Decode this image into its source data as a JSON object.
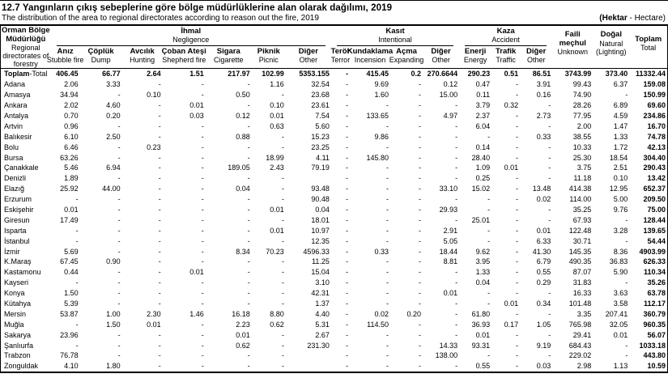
{
  "page": {
    "title": "12.7 Yangınların çıkış sebeplerine göre bölge müdürlüklerine alan olarak dağılımı, 2019",
    "subtitle": "The distribution of the area to regional directorates according to reason out the fire, 2019",
    "unit_tr": "(Hektar",
    "unit_en": " - Hectare)"
  },
  "table": {
    "row_header": {
      "tr": "Orman Bölge Müdürlüğü",
      "en": "Regional directorates of forestry"
    },
    "groups": [
      {
        "tr": "İhmal",
        "en": "Negligence"
      },
      {
        "tr": "Kasıt",
        "en": "Intentional"
      },
      {
        "tr": "Kaza",
        "en": "Accident"
      }
    ],
    "columns": [
      {
        "tr": "Anız",
        "en": "Stubble fire"
      },
      {
        "tr": "Çöplük",
        "en": "Dump"
      },
      {
        "tr": "Avcılık",
        "en": "Hunting"
      },
      {
        "tr": "Çoban Ateşi",
        "en": "Shepherd fire"
      },
      {
        "tr": "Sigara",
        "en": "Cigarette"
      },
      {
        "tr": "Piknik",
        "en": "Picnic"
      },
      {
        "tr": "Diğer",
        "en": "Other"
      },
      {
        "tr": "Terör",
        "en": "Terror"
      },
      {
        "tr": "Kundaklama",
        "en": "Incension"
      },
      {
        "tr": "Açma",
        "en": "Expanding"
      },
      {
        "tr": "Diğer",
        "en": "Other"
      },
      {
        "tr": "Enerji",
        "en": "Energy"
      },
      {
        "tr": "Trafik",
        "en": "Traffic"
      },
      {
        "tr": "Diğer",
        "en": "Other"
      }
    ],
    "singles": [
      {
        "tr": "Faili meçhul",
        "en": "Unknown"
      },
      {
        "tr": "Doğal",
        "en": "Natural (Lighting)"
      },
      {
        "tr": "Toplam",
        "en": "Total"
      }
    ],
    "rows": [
      {
        "label": "Toplam",
        "label2": "-Total",
        "total": true,
        "values": [
          "406.45",
          "66.77",
          "2.64",
          "1.51",
          "217.97",
          "102.99",
          "5353.155",
          "-",
          "415.45",
          "0.2",
          "270.6644",
          "290.23",
          "0.51",
          "86.51",
          "3743.99",
          "373.40",
          "11332.44"
        ]
      },
      {
        "label": "Adana",
        "values": [
          "2.06",
          "3.33",
          "-",
          "-",
          "-",
          "1.16",
          "32.54",
          "-",
          "9.69",
          "-",
          "0.12",
          "0.47",
          "-",
          "3.91",
          "99.43",
          "6.37",
          "159.08"
        ]
      },
      {
        "label": "Amasya",
        "values": [
          "34.94",
          "-",
          "0.10",
          "-",
          "0.50",
          "-",
          "23.68",
          "-",
          "1.60",
          "-",
          "15.00",
          "0.11",
          "-",
          "0.16",
          "74.90",
          "-",
          "150.99"
        ]
      },
      {
        "label": "Ankara",
        "values": [
          "2.02",
          "4.60",
          "-",
          "0.01",
          "-",
          "0.10",
          "23.61",
          "-",
          "-",
          "-",
          "-",
          "3.79",
          "0.32",
          "-",
          "28.26",
          "6.89",
          "69.60"
        ]
      },
      {
        "label": "Antalya",
        "values": [
          "0.70",
          "0.20",
          "-",
          "0.03",
          "0.12",
          "0.01",
          "7.54",
          "-",
          "133.65",
          "-",
          "4.97",
          "2.37",
          "-",
          "2.73",
          "77.95",
          "4.59",
          "234.86"
        ]
      },
      {
        "label": "Artvin",
        "values": [
          "0.96",
          "-",
          "-",
          "-",
          "-",
          "0.63",
          "5.60",
          "-",
          "-",
          "-",
          "-",
          "6.04",
          "-",
          "-",
          "2.00",
          "1.47",
          "16.70"
        ]
      },
      {
        "label": "Balıkesir",
        "values": [
          "6.10",
          "2.50",
          "-",
          "-",
          "0.88",
          "-",
          "15.23",
          "-",
          "9.86",
          "-",
          "-",
          "-",
          "-",
          "0.33",
          "38.55",
          "1.33",
          "74.78"
        ]
      },
      {
        "label": "Bolu",
        "values": [
          "6.46",
          "-",
          "0.23",
          "-",
          "-",
          "-",
          "23.25",
          "-",
          "-",
          "-",
          "-",
          "0.14",
          "-",
          "-",
          "10.33",
          "1.72",
          "42.13"
        ]
      },
      {
        "label": "Bursa",
        "values": [
          "63.26",
          "-",
          "-",
          "-",
          "-",
          "18.99",
          "4.11",
          "-",
          "145.80",
          "-",
          "-",
          "28.40",
          "-",
          "-",
          "25.30",
          "18.54",
          "304.40"
        ]
      },
      {
        "label": "Çanakkale",
        "values": [
          "5.46",
          "6.94",
          "-",
          "-",
          "189.05",
          "2.43",
          "79.19",
          "-",
          "-",
          "-",
          "-",
          "1.09",
          "0.01",
          "-",
          "3.75",
          "2.51",
          "290.43"
        ]
      },
      {
        "label": "Denizli",
        "values": [
          "1.89",
          "-",
          "-",
          "-",
          "-",
          "-",
          "",
          "-",
          "-",
          "-",
          "-",
          "0.25",
          "-",
          "-",
          "11.18",
          "0.10",
          "13.42"
        ]
      },
      {
        "label": "Elazığ",
        "values": [
          "25.92",
          "44.00",
          "-",
          "-",
          "0.04",
          "-",
          "93.48",
          "-",
          "-",
          "-",
          "33.10",
          "15.02",
          "-",
          "13.48",
          "414.38",
          "12.95",
          "652.37"
        ]
      },
      {
        "label": "Erzurum",
        "values": [
          "-",
          "-",
          "-",
          "-",
          "-",
          "-",
          "90.48",
          "-",
          "-",
          "-",
          "-",
          "-",
          "-",
          "0.02",
          "114.00",
          "5.00",
          "209.50"
        ]
      },
      {
        "label": "Eskişehir",
        "values": [
          "0.01",
          "-",
          "-",
          "-",
          "-",
          "0.01",
          "0.04",
          "-",
          "-",
          "-",
          "29.93",
          "-",
          "-",
          "-",
          "35.25",
          "9.76",
          "75.00"
        ]
      },
      {
        "label": "Giresun",
        "values": [
          "17.49",
          "-",
          "-",
          "-",
          "-",
          "-",
          "18.01",
          "-",
          "-",
          "-",
          "-",
          "25.01",
          "-",
          "-",
          "67.93",
          "-",
          "128.44"
        ]
      },
      {
        "label": "Isparta",
        "values": [
          "-",
          "-",
          "-",
          "-",
          "-",
          "0.01",
          "10.97",
          "-",
          "-",
          "-",
          "2.91",
          "-",
          "-",
          "0.01",
          "122.48",
          "3.28",
          "139.65"
        ]
      },
      {
        "label": "İstanbul",
        "values": [
          "-",
          "-",
          "-",
          "-",
          "-",
          "-",
          "12.35",
          "-",
          "-",
          "-",
          "5.05",
          "-",
          "-",
          "6.33",
          "30.71",
          "-",
          "54.44"
        ]
      },
      {
        "label": "İzmir",
        "values": [
          "5.69",
          "-",
          "-",
          "-",
          "8.34",
          "70.23",
          "4596.33",
          "-",
          "0.33",
          "-",
          "18.44",
          "9.62",
          "-",
          "41.30",
          "145.35",
          "8.36",
          "4903.99"
        ]
      },
      {
        "label": "K.Maraş",
        "values": [
          "67.45",
          "0.90",
          "-",
          "-",
          "-",
          "-",
          "11.25",
          "-",
          "-",
          "-",
          "8.81",
          "3.95",
          "-",
          "6.79",
          "490.35",
          "36.83",
          "626.33"
        ]
      },
      {
        "label": "Kastamonu",
        "values": [
          "0.44",
          "-",
          "-",
          "0.01",
          "-",
          "-",
          "15.04",
          "-",
          "-",
          "-",
          "-",
          "1.33",
          "-",
          "0.55",
          "87.07",
          "5.90",
          "110.34"
        ]
      },
      {
        "label": "Kayseri",
        "values": [
          "-",
          "-",
          "-",
          "-",
          "-",
          "-",
          "3.10",
          "-",
          "-",
          "-",
          "-",
          "0.04",
          "-",
          "0.29",
          "31.83",
          "-",
          "35.26"
        ]
      },
      {
        "label": "Konya",
        "values": [
          "1.50",
          "-",
          "-",
          "-",
          "-",
          "-",
          "42.31",
          "-",
          "-",
          "-",
          "0.01",
          "-",
          "-",
          "-",
          "16.33",
          "3.63",
          "63.78"
        ]
      },
      {
        "label": "Kütahya",
        "values": [
          "5.39",
          "-",
          "-",
          "-",
          "-",
          "-",
          "1.37",
          "-",
          "-",
          "-",
          "-",
          "-",
          "0.01",
          "0.34",
          "101.48",
          "3.58",
          "112.17"
        ]
      },
      {
        "label": "Mersin",
        "values": [
          "53.87",
          "1.00",
          "2.30",
          "1.46",
          "16.18",
          "8.80",
          "4.40",
          "-",
          "0.02",
          "0.20",
          "-",
          "61.80",
          "-",
          "-",
          "3.35",
          "207.41",
          "360.79"
        ]
      },
      {
        "label": "Muğla",
        "values": [
          "-",
          "1.50",
          "0.01",
          "-",
          "2.23",
          "0.62",
          "5.31",
          "-",
          "114.50",
          "-",
          "-",
          "36.93",
          "0.17",
          "1.05",
          "765.98",
          "32.05",
          "960.35"
        ]
      },
      {
        "label": "Sakarya",
        "values": [
          "23.96",
          "-",
          "-",
          "-",
          "0.01",
          "-",
          "2.67",
          "-",
          "-",
          "-",
          "-",
          "0.01",
          "-",
          "-",
          "29.41",
          "0.01",
          "56.07"
        ]
      },
      {
        "label": "Şanlıurfa",
        "values": [
          "-",
          "-",
          "-",
          "-",
          "0.62",
          "-",
          "231.30",
          "-",
          "-",
          "-",
          "14.33",
          "93.31",
          "-",
          "9.19",
          "684.43",
          "-",
          "1033.18"
        ]
      },
      {
        "label": "Trabzon",
        "values": [
          "76.78",
          "-",
          "-",
          "-",
          "-",
          "-",
          "",
          "-",
          "-",
          "-",
          "138.00",
          "-",
          "-",
          "-",
          "229.02",
          "-",
          "443.80"
        ]
      },
      {
        "label": "Zonguldak",
        "values": [
          "4.10",
          "1.80",
          "-",
          "-",
          "-",
          "-",
          "",
          "-",
          "-",
          "-",
          "-",
          "0.55",
          "-",
          "0.03",
          "2.98",
          "1.13",
          "10.59"
        ]
      }
    ]
  }
}
